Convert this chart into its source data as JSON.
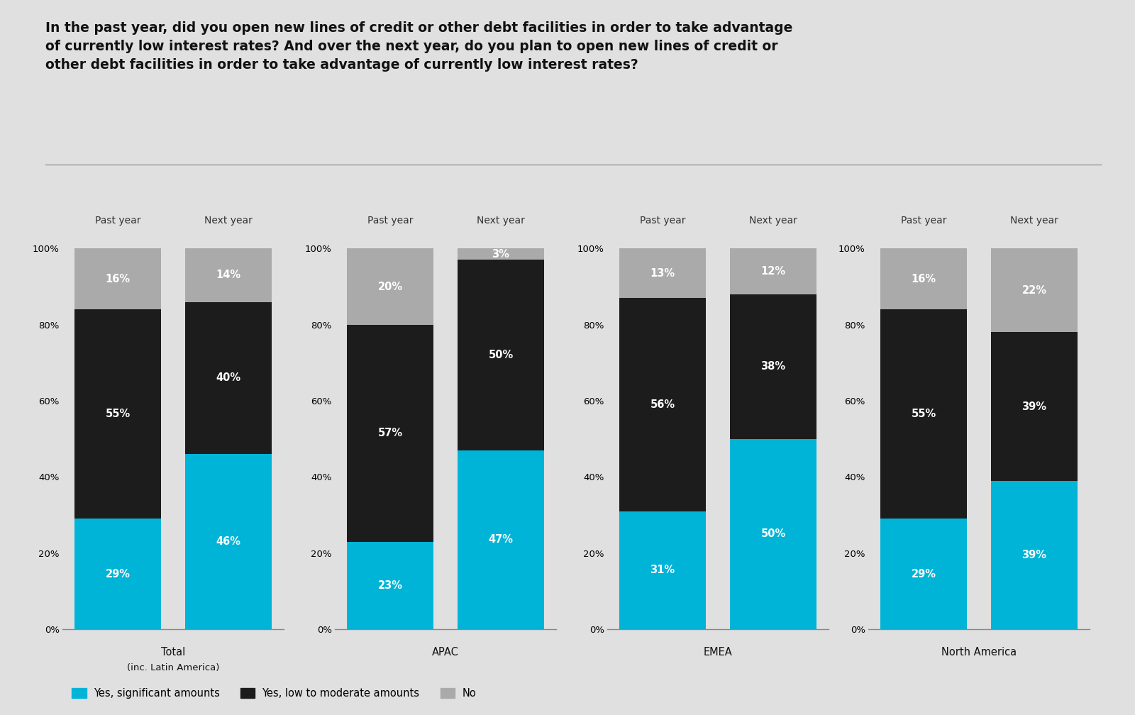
{
  "title_line1": "In the past year, did you open new lines of credit or other debt facilities in order to take advantage",
  "title_line2": "of currently low interest rates? And over the next year, do you plan to open new lines of credit or",
  "title_line3": "other debt facilities in order to take advantage of currently low interest rates?",
  "background_color": "#e0e0e0",
  "groups": [
    "Total",
    "APAC",
    "EMEA",
    "North America"
  ],
  "group_sublabels": [
    "(inc. Latin America)",
    "",
    "",
    ""
  ],
  "bar_labels": [
    "Past year",
    "Next year"
  ],
  "colors": {
    "yes_significant": "#00b4d8",
    "yes_low_moderate": "#1c1c1c",
    "no": "#aaaaaa"
  },
  "data": {
    "Total": {
      "Past year": {
        "yes_significant": 29,
        "yes_low_moderate": 55,
        "no": 16
      },
      "Next year": {
        "yes_significant": 46,
        "yes_low_moderate": 40,
        "no": 14
      }
    },
    "APAC": {
      "Past year": {
        "yes_significant": 23,
        "yes_low_moderate": 57,
        "no": 20
      },
      "Next year": {
        "yes_significant": 47,
        "yes_low_moderate": 50,
        "no": 3
      }
    },
    "EMEA": {
      "Past year": {
        "yes_significant": 31,
        "yes_low_moderate": 56,
        "no": 13
      },
      "Next year": {
        "yes_significant": 50,
        "yes_low_moderate": 38,
        "no": 12
      }
    },
    "North America": {
      "Past year": {
        "yes_significant": 29,
        "yes_low_moderate": 55,
        "no": 16
      },
      "Next year": {
        "yes_significant": 39,
        "yes_low_moderate": 39,
        "no": 22
      }
    }
  },
  "legend_labels": [
    "Yes, significant amounts",
    "Yes, low to moderate amounts",
    "No"
  ]
}
